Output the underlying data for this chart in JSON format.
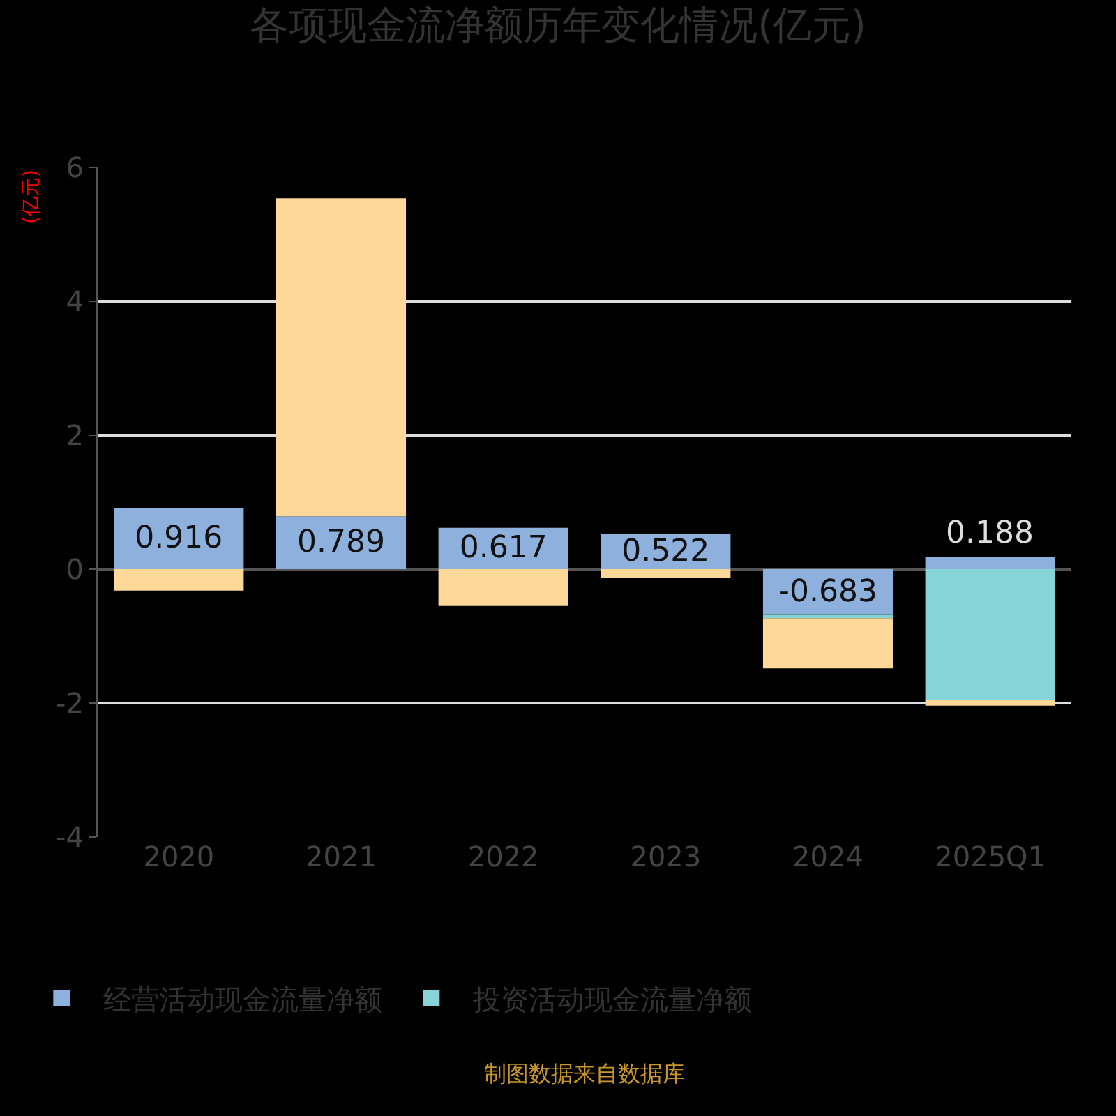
{
  "chart_data": {
    "type": "bar",
    "title": "各项现金流净额历年变化情况(亿元)",
    "ylabel": "(亿元)",
    "categories": [
      "2020",
      "2021",
      "2022",
      "2023",
      "2024",
      "2025Q1"
    ],
    "stacked": true,
    "series": [
      {
        "name": "经营活动现金流量净额",
        "color": "#8eb0dc",
        "values": [
          0.916,
          0.789,
          0.617,
          0.522,
          -0.683,
          0.188
        ],
        "value_labels": [
          "0.916",
          "0.789",
          "0.617",
          "0.522",
          "-0.683",
          "0.188"
        ]
      },
      {
        "name": "投资活动现金流量净额",
        "color": "#86d4d8",
        "values": [
          0,
          0,
          null,
          0,
          -0.05,
          -1.95
        ]
      },
      {
        "color": "#fed899",
        "values": [
          -0.32,
          4.75,
          -0.55,
          -0.13,
          -0.75,
          -0.09
        ]
      }
    ],
    "ylim": [
      -4,
      6
    ],
    "yticks": [
      -4,
      -2,
      0,
      2,
      4,
      6
    ],
    "grid": "y",
    "legend": "bottom",
    "annotations": [
      "制图数据来自数据库"
    ]
  }
}
